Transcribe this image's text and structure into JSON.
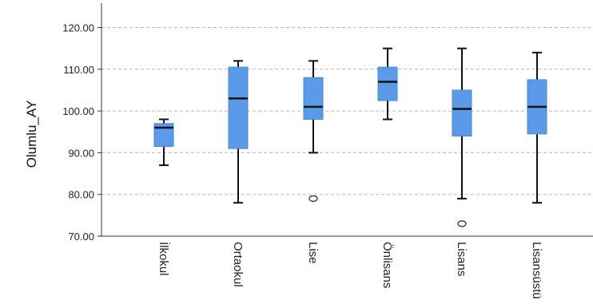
{
  "chart_data": {
    "type": "boxplot",
    "ylabel": "Olumlu_AY",
    "ylim": [
      70,
      125
    ],
    "yticks": [
      "70.00",
      "80.00",
      "90.00",
      "100.00",
      "110.00",
      "120.00"
    ],
    "ytick_values": [
      70,
      80,
      90,
      100,
      110,
      120
    ],
    "grid": true,
    "box_color": "#5a9ae8",
    "categories": [
      "İlkokul",
      "Ortaokul",
      "Lise",
      "Önlisans",
      "Lisans",
      "Lisansüstü"
    ],
    "boxes": [
      {
        "min": 87,
        "q1": 91.5,
        "median": 96,
        "q3": 97,
        "max": 98,
        "outliers": []
      },
      {
        "min": 78,
        "q1": 91,
        "median": 103,
        "q3": 110.5,
        "max": 112,
        "outliers": []
      },
      {
        "min": 90,
        "q1": 98,
        "median": 101,
        "q3": 108,
        "max": 112,
        "outliers": [
          79
        ]
      },
      {
        "min": 98,
        "q1": 102.5,
        "median": 107,
        "q3": 110.5,
        "max": 115,
        "outliers": []
      },
      {
        "min": 79,
        "q1": 94,
        "median": 100.5,
        "q3": 105,
        "max": 115,
        "outliers": [
          73
        ]
      },
      {
        "min": 78,
        "q1": 94.5,
        "median": 101,
        "q3": 107.5,
        "max": 114,
        "outliers": []
      }
    ]
  }
}
